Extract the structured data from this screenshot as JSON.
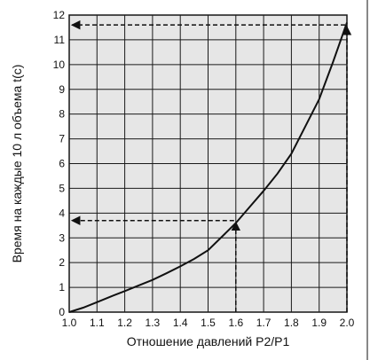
{
  "chart_data": {
    "type": "line",
    "title": "",
    "xlabel": "Отношение давлений P2/P1",
    "ylabel": "Время на каждые 10 л объема t(c)",
    "xlim": [
      1.0,
      2.0
    ],
    "ylim": [
      0,
      12
    ],
    "x_ticks": [
      "1.0",
      "1.1",
      "1.2",
      "1.3",
      "1.4",
      "1.5",
      "1.6",
      "1.7",
      "1.8",
      "1.9",
      "2.0"
    ],
    "y_ticks": [
      "0",
      "1",
      "2",
      "3",
      "4",
      "5",
      "6",
      "7",
      "8",
      "9",
      "10",
      "11",
      "12"
    ],
    "grid": true,
    "background_color": "#e6e6e6",
    "line_color": "#111111",
    "series": [
      {
        "x": [
          1.0,
          1.05,
          1.1,
          1.15,
          1.2,
          1.25,
          1.3,
          1.35,
          1.4,
          1.45,
          1.5,
          1.55,
          1.6,
          1.65,
          1.7,
          1.75,
          1.8,
          1.85,
          1.9,
          1.95,
          2.0
        ],
        "y": [
          0,
          0.18,
          0.4,
          0.63,
          0.85,
          1.08,
          1.3,
          1.57,
          1.85,
          2.15,
          2.5,
          3.05,
          3.6,
          4.25,
          4.9,
          5.6,
          6.4,
          7.5,
          8.6,
          10.1,
          11.7
        ]
      }
    ],
    "annotations": [
      {
        "type": "reference-arrow",
        "x": 1.6,
        "y": 3.7
      },
      {
        "type": "reference-arrow",
        "x": 2.0,
        "y": 11.6
      }
    ]
  }
}
